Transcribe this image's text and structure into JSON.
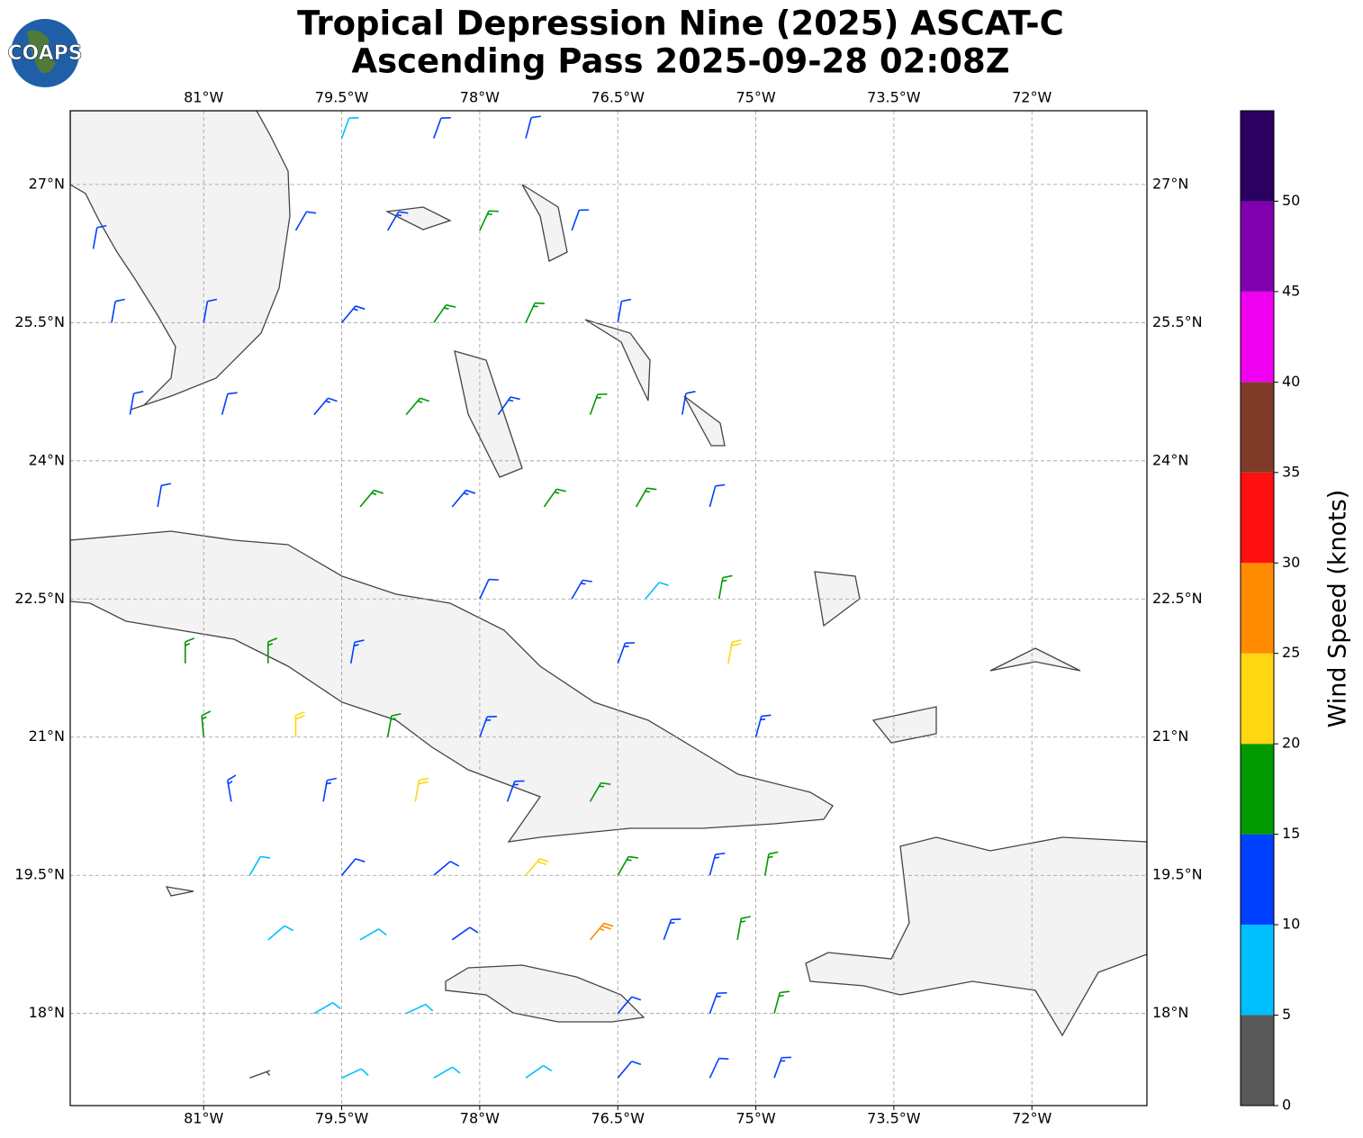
{
  "title": "Tropical Depression Nine (2025) ASCAT-C",
  "subtitle": "Ascending Pass 2025-09-28 02:08Z",
  "logo": "COAPS",
  "map": {
    "xlim": [
      -82.45,
      -70.75
    ],
    "ylim": [
      17.0,
      27.8
    ],
    "xticks": [
      {
        "value": -81,
        "label": "81°W"
      },
      {
        "value": -79.5,
        "label": "79.5°W"
      },
      {
        "value": -78,
        "label": "78°W"
      },
      {
        "value": -76.5,
        "label": "76.5°W"
      },
      {
        "value": -75,
        "label": "75°W"
      },
      {
        "value": -73.5,
        "label": "73.5°W"
      },
      {
        "value": -72,
        "label": "72°W"
      }
    ],
    "yticks": [
      {
        "value": 27,
        "label": "27°N"
      },
      {
        "value": 25.5,
        "label": "25.5°N"
      },
      {
        "value": 24,
        "label": "24°N"
      },
      {
        "value": 22.5,
        "label": "22.5°N"
      },
      {
        "value": 21,
        "label": "21°N"
      },
      {
        "value": 19.5,
        "label": "19.5°N"
      },
      {
        "value": 18,
        "label": "18°N"
      }
    ],
    "grid": true
  },
  "colorbar": {
    "label": "Wind Speed (knots)",
    "ylim": [
      0,
      55
    ],
    "yticks": [
      0,
      5,
      10,
      15,
      20,
      25,
      30,
      35,
      40,
      45,
      50
    ],
    "bounds": [
      0,
      5,
      10,
      15,
      20,
      25,
      30,
      35,
      40,
      45,
      50,
      55
    ],
    "colors": [
      "#595959",
      "#00bfff",
      "#0040ff",
      "#009900",
      "#ffd612",
      "#ff8c00",
      "#ff1010",
      "#7f3b28",
      "#f000f0",
      "#8000b0",
      "#2a0060"
    ]
  },
  "wind_barbs": [
    [
      -79.5,
      27.5,
      8,
      20
    ],
    [
      -78.5,
      27.5,
      12,
      20
    ],
    [
      -77.5,
      27.5,
      12,
      15
    ],
    [
      -82.2,
      26.3,
      12,
      10
    ],
    [
      -80,
      26.5,
      12,
      30
    ],
    [
      -79,
      26.5,
      13,
      30
    ],
    [
      -78,
      26.5,
      17,
      25
    ],
    [
      -77,
      26.5,
      12,
      20
    ],
    [
      -82,
      25.5,
      12,
      10
    ],
    [
      -81,
      25.5,
      12,
      10
    ],
    [
      -79.5,
      25.5,
      13,
      40
    ],
    [
      -78.5,
      25.5,
      17,
      35
    ],
    [
      -77.5,
      25.5,
      16,
      25
    ],
    [
      -76.5,
      25.5,
      12,
      10
    ],
    [
      -81.8,
      24.5,
      12,
      10
    ],
    [
      -80.8,
      24.5,
      12,
      15
    ],
    [
      -79.8,
      24.5,
      13,
      40
    ],
    [
      -78.8,
      24.5,
      17,
      40
    ],
    [
      -77.8,
      24.5,
      13,
      35
    ],
    [
      -76.8,
      24.5,
      17,
      20
    ],
    [
      -75.8,
      24.5,
      12,
      10
    ],
    [
      -81.5,
      23.5,
      12,
      10
    ],
    [
      -79.3,
      23.5,
      16,
      40
    ],
    [
      -78.3,
      23.5,
      13,
      40
    ],
    [
      -77.3,
      23.5,
      17,
      35
    ],
    [
      -76.3,
      23.5,
      17,
      30
    ],
    [
      -75.5,
      23.5,
      12,
      15
    ],
    [
      -78,
      22.5,
      12,
      25
    ],
    [
      -77,
      22.5,
      13,
      30
    ],
    [
      -76.2,
      22.5,
      8,
      40
    ],
    [
      -75.4,
      22.5,
      17,
      10
    ],
    [
      -81.2,
      21.8,
      16,
      0
    ],
    [
      -80.3,
      21.8,
      16,
      0
    ],
    [
      -79.4,
      21.8,
      13,
      10
    ],
    [
      -76.5,
      21.8,
      13,
      20
    ],
    [
      -75.3,
      21.8,
      21,
      10
    ],
    [
      -81,
      21,
      17,
      355
    ],
    [
      -80,
      21,
      21,
      0
    ],
    [
      -79,
      21,
      16,
      10
    ],
    [
      -78,
      21,
      13,
      20
    ],
    [
      -75,
      21,
      13,
      15
    ],
    [
      -80.7,
      20.3,
      13,
      350
    ],
    [
      -79.7,
      20.3,
      13,
      10
    ],
    [
      -78.7,
      20.3,
      21,
      10
    ],
    [
      -77.7,
      20.3,
      13,
      20
    ],
    [
      -76.8,
      20.3,
      17,
      30
    ],
    [
      -80.5,
      19.5,
      8,
      30
    ],
    [
      -79.5,
      19.5,
      12,
      40
    ],
    [
      -78.5,
      19.5,
      12,
      50
    ],
    [
      -77.5,
      19.5,
      21,
      40
    ],
    [
      -76.5,
      19.5,
      16,
      30
    ],
    [
      -75.5,
      19.5,
      13,
      15
    ],
    [
      -74.9,
      19.5,
      17,
      10
    ],
    [
      -80.3,
      18.8,
      8,
      50
    ],
    [
      -79.3,
      18.8,
      8,
      60
    ],
    [
      -78.3,
      18.8,
      12,
      55
    ],
    [
      -76.8,
      18.8,
      26,
      40
    ],
    [
      -76,
      18.8,
      13,
      20
    ],
    [
      -75.2,
      18.8,
      17,
      10
    ],
    [
      -79.8,
      18,
      8,
      60
    ],
    [
      -78.8,
      18,
      8,
      65
    ],
    [
      -76.5,
      18,
      12,
      40
    ],
    [
      -75.5,
      18,
      13,
      20
    ],
    [
      -74.8,
      18,
      17,
      15
    ],
    [
      -80.5,
      17.3,
      3,
      70
    ],
    [
      -79.5,
      17.3,
      8,
      65
    ],
    [
      -78.5,
      17.3,
      8,
      60
    ],
    [
      -77.5,
      17.3,
      8,
      55
    ],
    [
      -76.5,
      17.3,
      12,
      40
    ],
    [
      -75.5,
      17.3,
      12,
      25
    ],
    [
      -74.8,
      17.3,
      13,
      20
    ]
  ]
}
